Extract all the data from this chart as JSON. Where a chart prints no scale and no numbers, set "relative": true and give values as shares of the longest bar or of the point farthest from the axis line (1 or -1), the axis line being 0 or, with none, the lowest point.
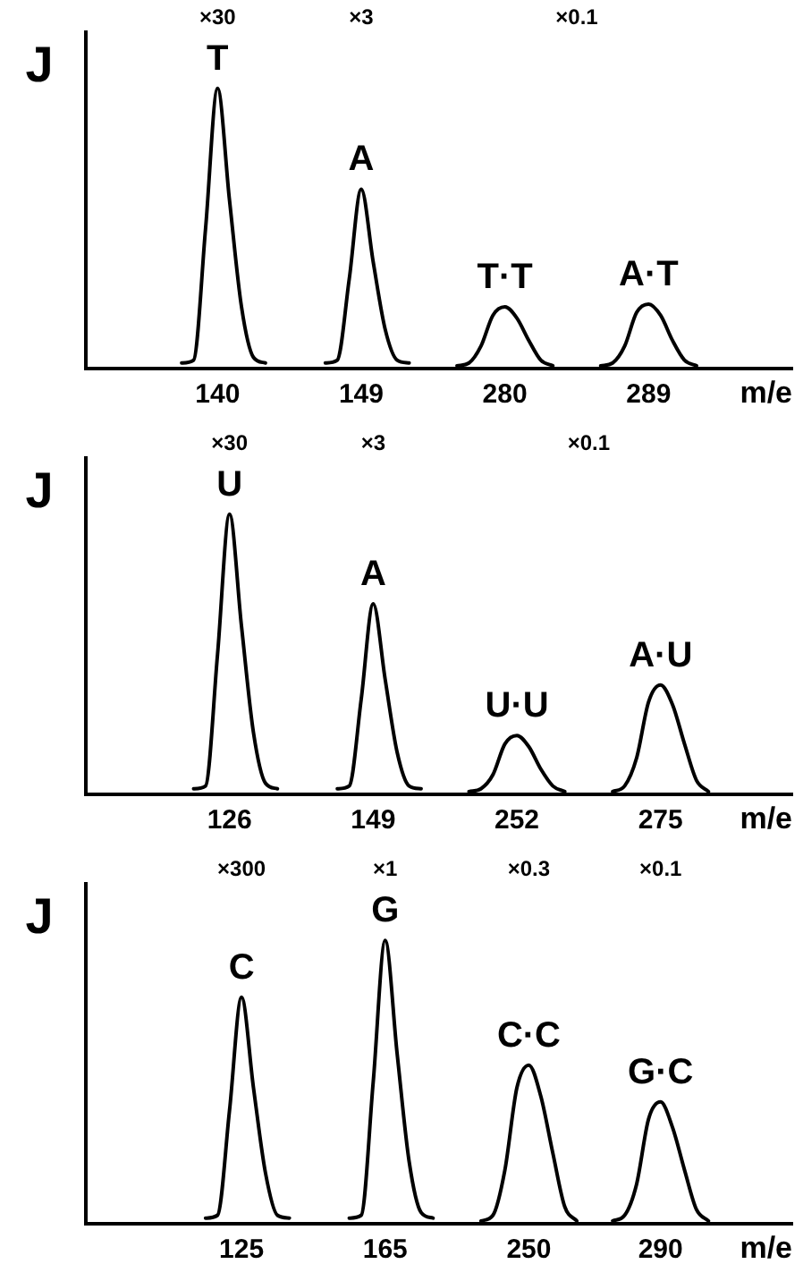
{
  "chart_data": [
    {
      "type": "line",
      "relative": true,
      "ylabel": "J",
      "xlabel": "m/e",
      "color": "#000000",
      "grid": false,
      "legend": false,
      "marker": "none",
      "line_style": "solid",
      "categories": [
        null,
        null,
        null,
        null,
        null,
        null,
        null,
        null,
        null,
        null,
        null,
        "140",
        null,
        null,
        null,
        null,
        null,
        null,
        null,
        null,
        null,
        null,
        null,
        "149",
        null,
        null,
        null,
        null,
        null,
        null,
        null,
        null,
        null,
        null,
        null,
        "280",
        null,
        null,
        null,
        null,
        null,
        null,
        null,
        null,
        null,
        null,
        null,
        "289",
        null,
        null,
        null,
        null,
        null,
        null,
        null,
        null,
        null,
        null,
        null,
        null
      ],
      "values": [
        null,
        null,
        null,
        null,
        null,
        null,
        null,
        null,
        0.02,
        0.03,
        0.5,
        1,
        0.6,
        0.22,
        0.04,
        0.02,
        null,
        null,
        null,
        null,
        0.02,
        0.03,
        0.32,
        0.64,
        0.38,
        0.14,
        0.03,
        0.02,
        null,
        null,
        null,
        0.01,
        0.02,
        0.08,
        0.19,
        0.22,
        0.18,
        0.1,
        0.03,
        0.01,
        null,
        null,
        null,
        0.01,
        0.02,
        0.08,
        0.2,
        0.23,
        0.19,
        0.1,
        0.03,
        0.01,
        null,
        null,
        null,
        null,
        null,
        null,
        null,
        null
      ],
      "annotations": [
        {
          "text": "T",
          "x": "140",
          "y": 1
        },
        {
          "text": "A",
          "x": "149",
          "y": 0.64
        },
        {
          "text": "T·T",
          "x": "280",
          "y": 0.22
        },
        {
          "text": "A·T",
          "x": "289",
          "y": 0.23
        },
        "×30",
        "×3",
        "×0.1"
      ]
    },
    {
      "type": "line",
      "relative": true,
      "ylabel": "J",
      "xlabel": "m/e",
      "color": "#000000",
      "grid": false,
      "legend": false,
      "marker": "none",
      "line_style": "solid",
      "categories": [
        null,
        null,
        null,
        null,
        null,
        null,
        null,
        null,
        null,
        null,
        null,
        null,
        "126",
        null,
        null,
        null,
        null,
        null,
        null,
        null,
        null,
        null,
        null,
        null,
        "149",
        null,
        null,
        null,
        null,
        null,
        null,
        null,
        null,
        null,
        null,
        null,
        "252",
        null,
        null,
        null,
        null,
        null,
        null,
        null,
        null,
        null,
        null,
        null,
        "275",
        null,
        null,
        null,
        null,
        null,
        null,
        null,
        null,
        null,
        null,
        null
      ],
      "values": [
        null,
        null,
        null,
        null,
        null,
        null,
        null,
        null,
        null,
        0.02,
        0.03,
        0.5,
        1,
        0.6,
        0.22,
        0.04,
        0.02,
        null,
        null,
        null,
        null,
        0.02,
        0.03,
        0.34,
        0.68,
        0.41,
        0.15,
        0.03,
        0.02,
        null,
        null,
        null,
        0.01,
        0.02,
        0.07,
        0.18,
        0.21,
        0.17,
        0.09,
        0.03,
        0.01,
        null,
        null,
        null,
        0.01,
        0.03,
        0.13,
        0.33,
        0.39,
        0.32,
        0.18,
        0.05,
        0.01,
        null,
        null,
        null,
        null,
        null,
        null,
        null
      ],
      "annotations": [
        {
          "text": "U",
          "x": "126",
          "y": 1
        },
        {
          "text": "A",
          "x": "149",
          "y": 0.68
        },
        {
          "text": "U·U",
          "x": "252",
          "y": 0.21
        },
        {
          "text": "A·U",
          "x": "275",
          "y": 0.39
        },
        "×30",
        "×3",
        "×0.1"
      ]
    },
    {
      "type": "line",
      "relative": true,
      "ylabel": "J",
      "xlabel": "m/e",
      "color": "#000000",
      "grid": false,
      "legend": false,
      "marker": "none",
      "line_style": "solid",
      "categories": [
        null,
        null,
        null,
        null,
        null,
        null,
        null,
        null,
        null,
        null,
        null,
        null,
        null,
        "125",
        null,
        null,
        null,
        null,
        null,
        null,
        null,
        null,
        null,
        null,
        null,
        "165",
        null,
        null,
        null,
        null,
        null,
        null,
        null,
        null,
        null,
        null,
        null,
        "250",
        null,
        null,
        null,
        null,
        null,
        null,
        null,
        null,
        null,
        null,
        "290",
        null,
        null,
        null,
        null,
        null,
        null,
        null,
        null,
        null,
        null,
        null
      ],
      "values": [
        null,
        null,
        null,
        null,
        null,
        null,
        null,
        null,
        null,
        null,
        0.02,
        0.03,
        0.4,
        0.8,
        0.48,
        0.18,
        0.03,
        0.02,
        null,
        null,
        null,
        null,
        0.02,
        0.03,
        0.5,
        1,
        0.6,
        0.22,
        0.04,
        0.02,
        null,
        null,
        null,
        0.01,
        0.03,
        0.19,
        0.48,
        0.56,
        0.45,
        0.25,
        0.06,
        0.01,
        null,
        null,
        0.01,
        0.03,
        0.14,
        0.37,
        0.43,
        0.34,
        0.19,
        0.05,
        0.01,
        null,
        null,
        null,
        null,
        null,
        null,
        null
      ],
      "annotations": [
        {
          "text": "C",
          "x": "125",
          "y": 0.8
        },
        {
          "text": "G",
          "x": "165",
          "y": 1
        },
        {
          "text": "C·C",
          "x": "250",
          "y": 0.56
        },
        {
          "text": "G·C",
          "x": "290",
          "y": 0.43
        },
        "×300",
        "×1",
        "×0.3",
        "×0.1"
      ]
    }
  ]
}
